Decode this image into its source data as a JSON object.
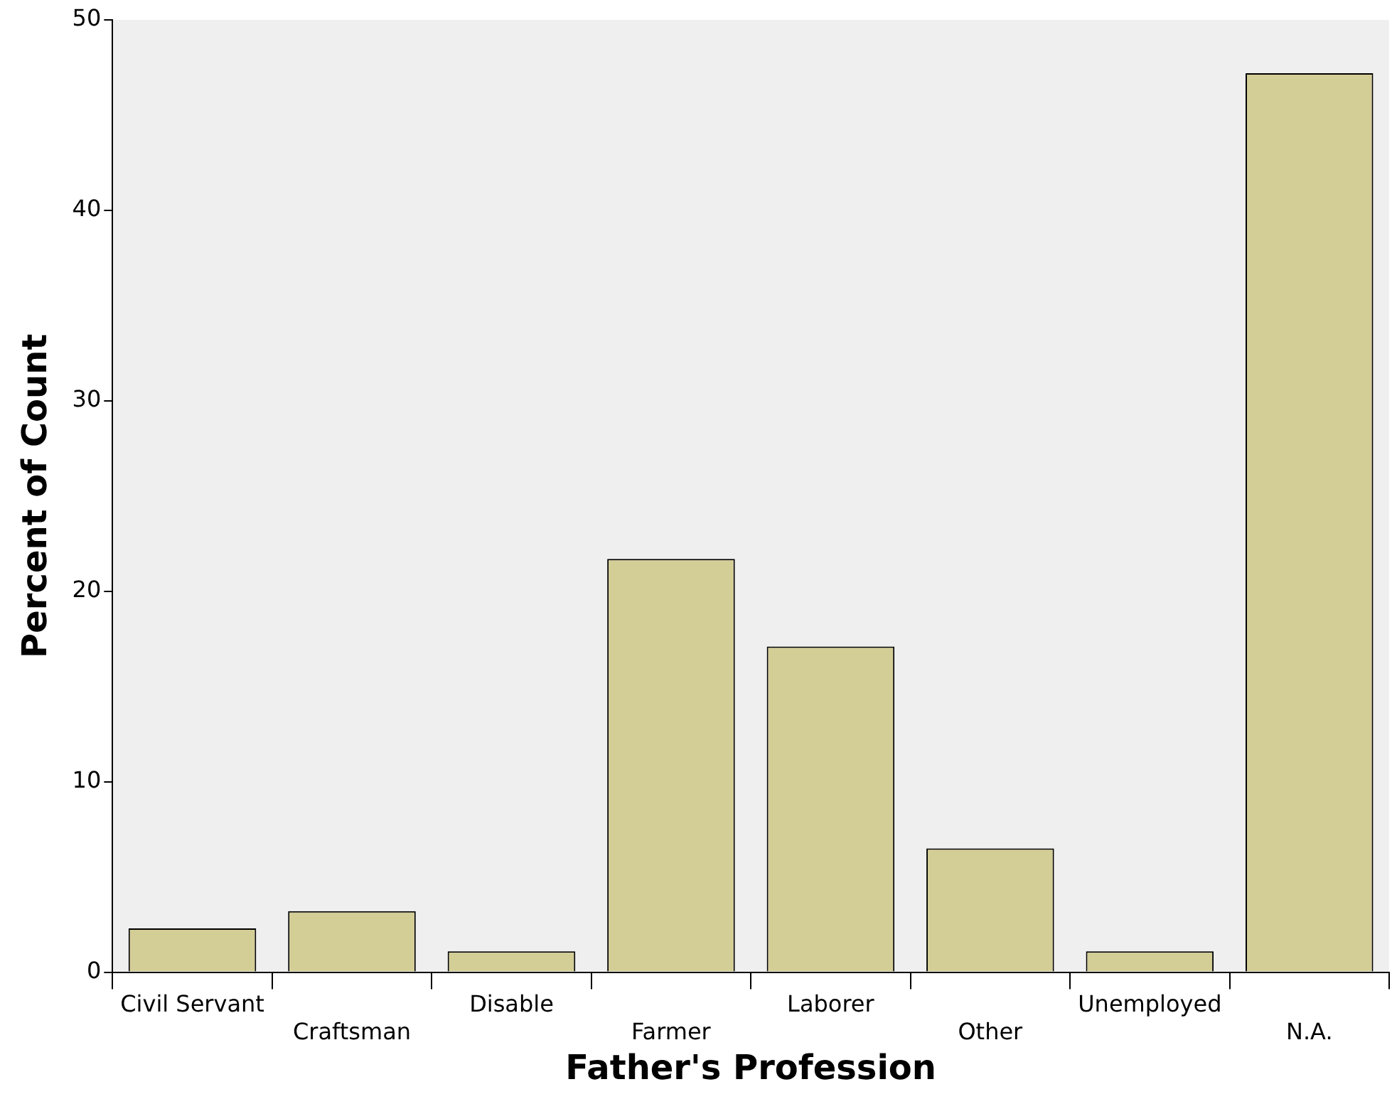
{
  "chart_data": {
    "type": "bar",
    "xlabel": "Father's Profession",
    "ylabel": "Percent of Count",
    "categories": [
      "Civil Servant",
      "Craftsman",
      "Disable",
      "Farmer",
      "Laborer",
      "Other",
      "Unemployed",
      "N.A."
    ],
    "values": [
      2.3,
      3.2,
      1.1,
      21.7,
      17.1,
      6.5,
      1.1,
      47.2
    ],
    "color": "#d3cd96",
    "ylim": [
      0,
      50
    ],
    "yticks": [
      0,
      10,
      20,
      30,
      40,
      50
    ],
    "grid": false,
    "legend": false
  }
}
